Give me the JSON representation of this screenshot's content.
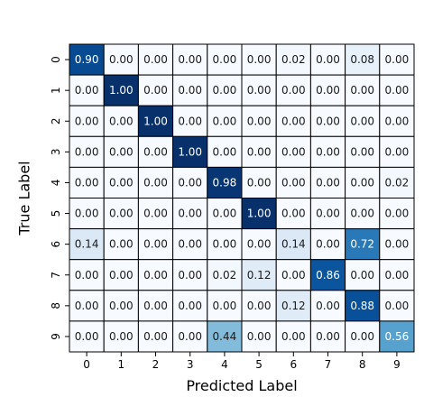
{
  "chart_data": {
    "type": "heatmap",
    "title": "",
    "xlabel": "Predicted Label",
    "ylabel": "True Label",
    "x_categories": [
      "0",
      "1",
      "2",
      "3",
      "4",
      "5",
      "6",
      "7",
      "8",
      "9"
    ],
    "y_categories": [
      "0",
      "1",
      "2",
      "3",
      "4",
      "5",
      "6",
      "7",
      "8",
      "9"
    ],
    "value_range": [
      0,
      1
    ],
    "colormap": "Blues",
    "grid": true,
    "values": [
      [
        0.9,
        0.0,
        0.0,
        0.0,
        0.0,
        0.0,
        0.02,
        0.0,
        0.08,
        0.0
      ],
      [
        0.0,
        1.0,
        0.0,
        0.0,
        0.0,
        0.0,
        0.0,
        0.0,
        0.0,
        0.0
      ],
      [
        0.0,
        0.0,
        1.0,
        0.0,
        0.0,
        0.0,
        0.0,
        0.0,
        0.0,
        0.0
      ],
      [
        0.0,
        0.0,
        0.0,
        1.0,
        0.0,
        0.0,
        0.0,
        0.0,
        0.0,
        0.0
      ],
      [
        0.0,
        0.0,
        0.0,
        0.0,
        0.98,
        0.0,
        0.0,
        0.0,
        0.0,
        0.02
      ],
      [
        0.0,
        0.0,
        0.0,
        0.0,
        0.0,
        1.0,
        0.0,
        0.0,
        0.0,
        0.0
      ],
      [
        0.14,
        0.0,
        0.0,
        0.0,
        0.0,
        0.0,
        0.14,
        0.0,
        0.72,
        0.0
      ],
      [
        0.0,
        0.0,
        0.0,
        0.0,
        0.02,
        0.12,
        0.0,
        0.86,
        0.0,
        0.0
      ],
      [
        0.0,
        0.0,
        0.0,
        0.0,
        0.0,
        0.0,
        0.12,
        0.0,
        0.88,
        0.0
      ],
      [
        0.0,
        0.0,
        0.0,
        0.0,
        0.44,
        0.0,
        0.0,
        0.0,
        0.0,
        0.56
      ]
    ],
    "cell_labels": [
      [
        "0.90",
        "0.00",
        "0.00",
        "0.00",
        "0.00",
        "0.00",
        "0.02",
        "0.00",
        "0.08",
        "0.00"
      ],
      [
        "0.00",
        "1.00",
        "0.00",
        "0.00",
        "0.00",
        "0.00",
        "0.00",
        "0.00",
        "0.00",
        "0.00"
      ],
      [
        "0.00",
        "0.00",
        "1.00",
        "0.00",
        "0.00",
        "0.00",
        "0.00",
        "0.00",
        "0.00",
        "0.00"
      ],
      [
        "0.00",
        "0.00",
        "0.00",
        "1.00",
        "0.00",
        "0.00",
        "0.00",
        "0.00",
        "0.00",
        "0.00"
      ],
      [
        "0.00",
        "0.00",
        "0.00",
        "0.00",
        "0.98",
        "0.00",
        "0.00",
        "0.00",
        "0.00",
        "0.02"
      ],
      [
        "0.00",
        "0.00",
        "0.00",
        "0.00",
        "0.00",
        "1.00",
        "0.00",
        "0.00",
        "0.00",
        "0.00"
      ],
      [
        "0.14",
        "0.00",
        "0.00",
        "0.00",
        "0.00",
        "0.00",
        "0.14",
        "0.00",
        "0.72",
        "0.00"
      ],
      [
        "0.00",
        "0.00",
        "0.00",
        "0.00",
        "0.02",
        "0.12",
        "0.00",
        "0.86",
        "0.00",
        "0.00"
      ],
      [
        "0.00",
        "0.00",
        "0.00",
        "0.00",
        "0.00",
        "0.00",
        "0.12",
        "0.00",
        "0.88",
        "0.00"
      ],
      [
        "0.00",
        "0.00",
        "0.00",
        "0.00",
        "0.44",
        "0.00",
        "0.00",
        "0.00",
        "0.00",
        "0.56"
      ]
    ]
  }
}
